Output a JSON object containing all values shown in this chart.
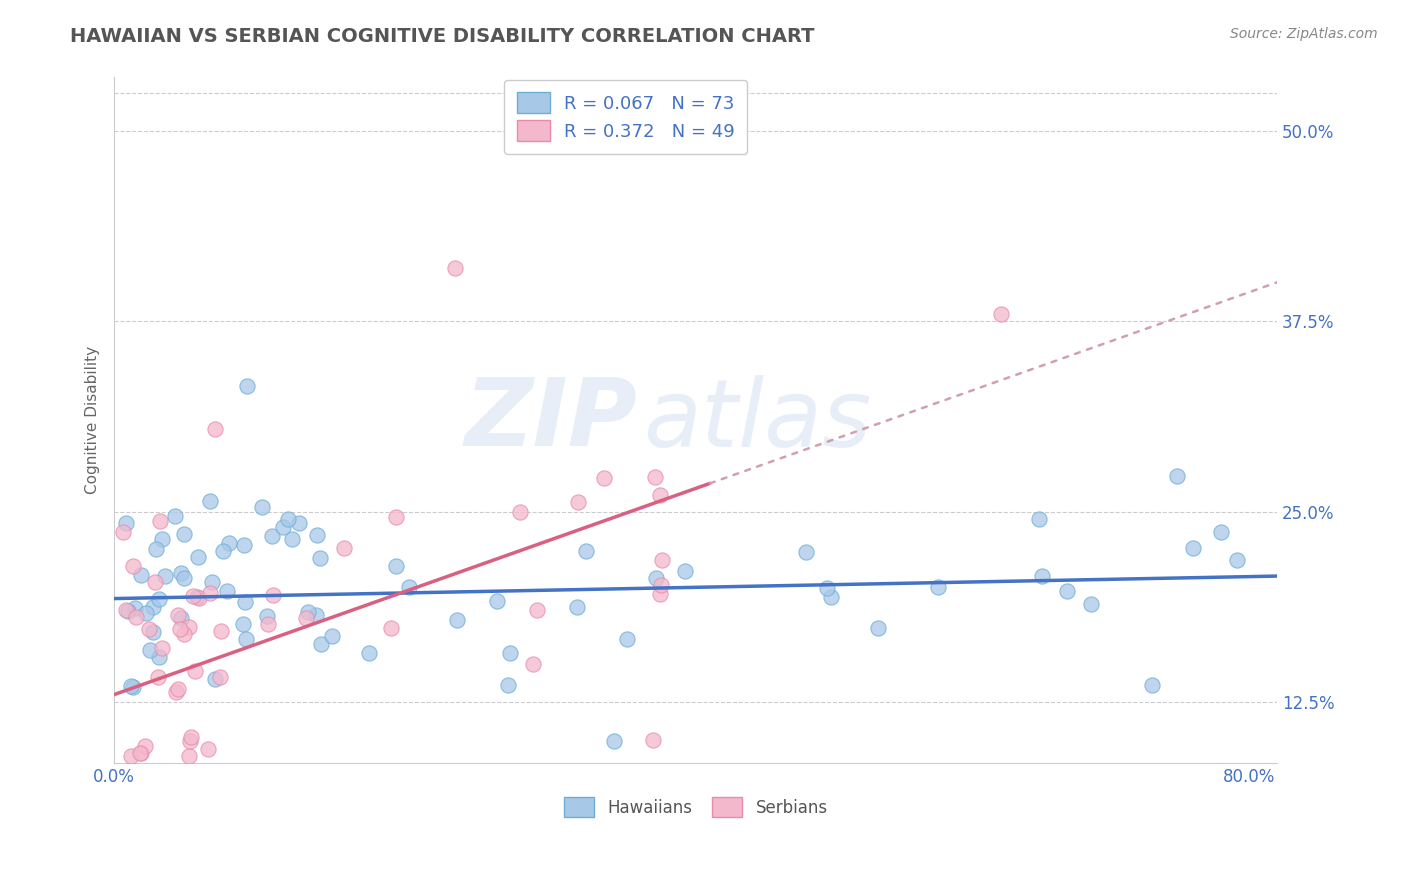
{
  "title": "HAWAIIAN VS SERBIAN COGNITIVE DISABILITY CORRELATION CHART",
  "source": "Source: ZipAtlas.com",
  "ylabel": "Cognitive Disability",
  "hawaiian_color": "#a8c8e8",
  "hawaiian_edge_color": "#6baed6",
  "serbian_color": "#f4b8cc",
  "serbian_edge_color": "#e88aa8",
  "hawaiian_line_color": "#4472c4",
  "serbian_line_color": "#d96080",
  "serbian_dot_line_color": "#d0a0b0",
  "r_hawaiian": 0.067,
  "n_hawaiian": 73,
  "r_serbian": 0.372,
  "n_serbian": 49,
  "legend_label_hawaiian": "Hawaiians",
  "legend_label_serbian": "Serbians",
  "xlim": [
    0.0,
    0.82
  ],
  "ylim": [
    0.085,
    0.535
  ],
  "y_ticks": [
    0.125,
    0.25,
    0.375,
    0.5
  ],
  "y_tick_labels": [
    "12.5%",
    "25.0%",
    "37.5%",
    "50.0%"
  ],
  "x_ticks": [
    0.0,
    0.8
  ],
  "x_tick_labels": [
    "0.0%",
    "80.0%"
  ],
  "tick_color": "#4472c4",
  "watermark_text": "ZIPAtlas",
  "title_color": "#555555",
  "source_color": "#888888"
}
